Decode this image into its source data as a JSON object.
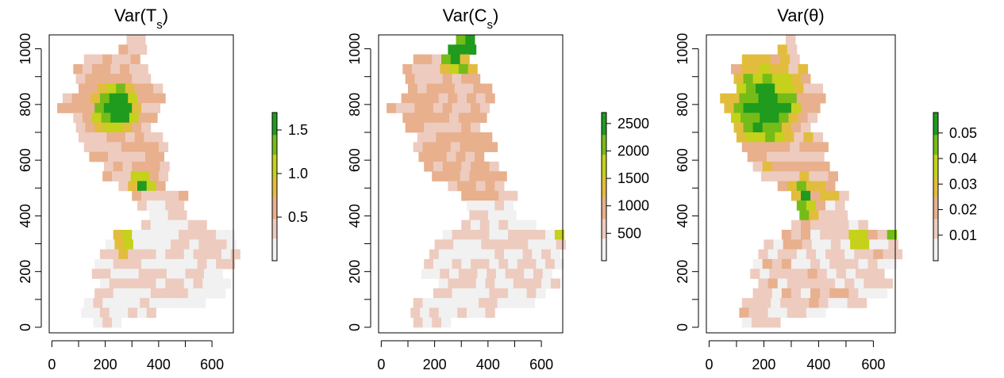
{
  "chart_data": [
    {
      "type": "heatmap",
      "title": "Var(T",
      "title_sub": "s",
      "title_close": ")",
      "xticks": [
        "0",
        "200",
        "400",
        "600"
      ],
      "yticks": [
        "0",
        "200",
        "400",
        "600",
        "800",
        "1000"
      ],
      "xlim": [
        -10,
        680
      ],
      "ylim": [
        -20,
        1050
      ],
      "legend": {
        "ticks": [
          "0.5",
          "1.0",
          "1.5"
        ],
        "tick_values": [
          0.5,
          1.0,
          1.5
        ],
        "range": [
          0,
          1.7
        ]
      },
      "colors": [
        "#f1f1f1",
        "#eecbbf",
        "#e8b08d",
        "#e2bd3d",
        "#c5d11b",
        "#75bc19",
        "#1f9b1e"
      ],
      "profile": "ts"
    },
    {
      "type": "heatmap",
      "title": "Var(C",
      "title_sub": "s",
      "title_close": ")",
      "xticks": [
        "0",
        "200",
        "400",
        "600"
      ],
      "yticks": [
        "0",
        "200",
        "400",
        "600",
        "800",
        "1000"
      ],
      "xlim": [
        -10,
        680
      ],
      "ylim": [
        -20,
        1050
      ],
      "legend": {
        "ticks": [
          "500",
          "1000",
          "1500",
          "2000",
          "2500"
        ],
        "tick_values": [
          500,
          1000,
          1500,
          2000,
          2500
        ],
        "range": [
          0,
          2700
        ]
      },
      "colors": [
        "#f1f1f1",
        "#eecbbf",
        "#e8b08d",
        "#e2bd3d",
        "#c5d11b",
        "#75bc19",
        "#1f9b1e"
      ],
      "profile": "cs"
    },
    {
      "type": "heatmap",
      "title": "Var(θ",
      "title_sub": "",
      "title_close": ")",
      "xticks": [
        "0",
        "200",
        "400",
        "600"
      ],
      "yticks": [
        "0",
        "200",
        "400",
        "600",
        "800",
        "1000"
      ],
      "xlim": [
        -10,
        680
      ],
      "ylim": [
        -20,
        1050
      ],
      "legend": {
        "ticks": [
          "0.01",
          "0.02",
          "0.03",
          "0.04",
          "0.05"
        ],
        "tick_values": [
          0.01,
          0.02,
          0.03,
          0.04,
          0.05
        ],
        "range": [
          0,
          0.058
        ]
      },
      "colors": [
        "#f1f1f1",
        "#eecbbf",
        "#e8b08d",
        "#e2bd3d",
        "#c5d11b",
        "#75bc19",
        "#1f9b1e"
      ],
      "profile": "theta"
    }
  ]
}
